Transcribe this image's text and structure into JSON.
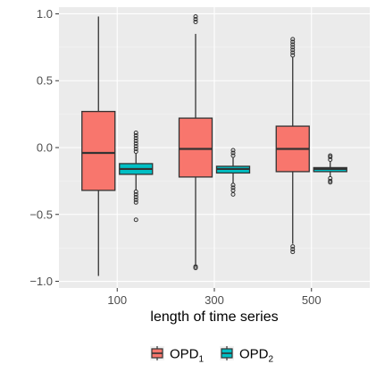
{
  "chart_data": {
    "type": "box",
    "xlabel": "length of time series",
    "ylabel": "",
    "categories": [
      "100",
      "300",
      "500"
    ],
    "ylim": [
      -1.05,
      1.05
    ],
    "yticks": [
      -1.0,
      -0.5,
      0.0,
      0.5,
      1.0
    ],
    "ytick_labels": [
      "−1.0",
      "−0.5",
      "0.0",
      "0.5",
      "1.0"
    ],
    "grid": true,
    "legend_position": "bottom",
    "legend": [
      {
        "base": "OPD",
        "sub": "1"
      },
      {
        "base": "OPD",
        "sub": "2"
      }
    ],
    "series": [
      {
        "name": "OPD1",
        "color": "#F8766D",
        "boxes": [
          {
            "category": "100",
            "min": -0.96,
            "q1": -0.32,
            "median": -0.04,
            "q3": 0.27,
            "max": 0.98,
            "outliers": []
          },
          {
            "category": "300",
            "min": -0.89,
            "q1": -0.22,
            "median": -0.01,
            "q3": 0.22,
            "max": 0.85,
            "outliers": [
              -0.89,
              -0.9,
              0.94,
              0.96,
              0.98
            ]
          },
          {
            "category": "500",
            "min": -0.72,
            "q1": -0.18,
            "median": -0.01,
            "q3": 0.16,
            "max": 0.68,
            "outliers": [
              -0.74,
              -0.76,
              -0.78,
              0.69,
              0.71,
              0.73,
              0.75,
              0.77,
              0.79,
              0.81
            ]
          }
        ]
      },
      {
        "name": "OPD2",
        "color": "#00BFC4",
        "boxes": [
          {
            "category": "100",
            "min": -0.32,
            "q1": -0.2,
            "median": -0.16,
            "q3": -0.12,
            "max": -0.04,
            "outliers": [
              -0.33,
              -0.35,
              -0.37,
              -0.39,
              -0.41,
              -0.54,
              -0.03,
              -0.01,
              0.01,
              0.03,
              0.05,
              0.07,
              0.09,
              0.11
            ]
          },
          {
            "category": "300",
            "min": -0.27,
            "q1": -0.19,
            "median": -0.16,
            "q3": -0.14,
            "max": -0.07,
            "outliers": [
              -0.28,
              -0.3,
              -0.32,
              -0.35,
              -0.06,
              -0.04,
              -0.02
            ]
          },
          {
            "category": "500",
            "min": -0.22,
            "q1": -0.18,
            "median": -0.16,
            "q3": -0.15,
            "max": -0.1,
            "outliers": [
              -0.23,
              -0.25,
              -0.26,
              -0.09,
              -0.07,
              -0.06
            ]
          }
        ]
      }
    ]
  }
}
